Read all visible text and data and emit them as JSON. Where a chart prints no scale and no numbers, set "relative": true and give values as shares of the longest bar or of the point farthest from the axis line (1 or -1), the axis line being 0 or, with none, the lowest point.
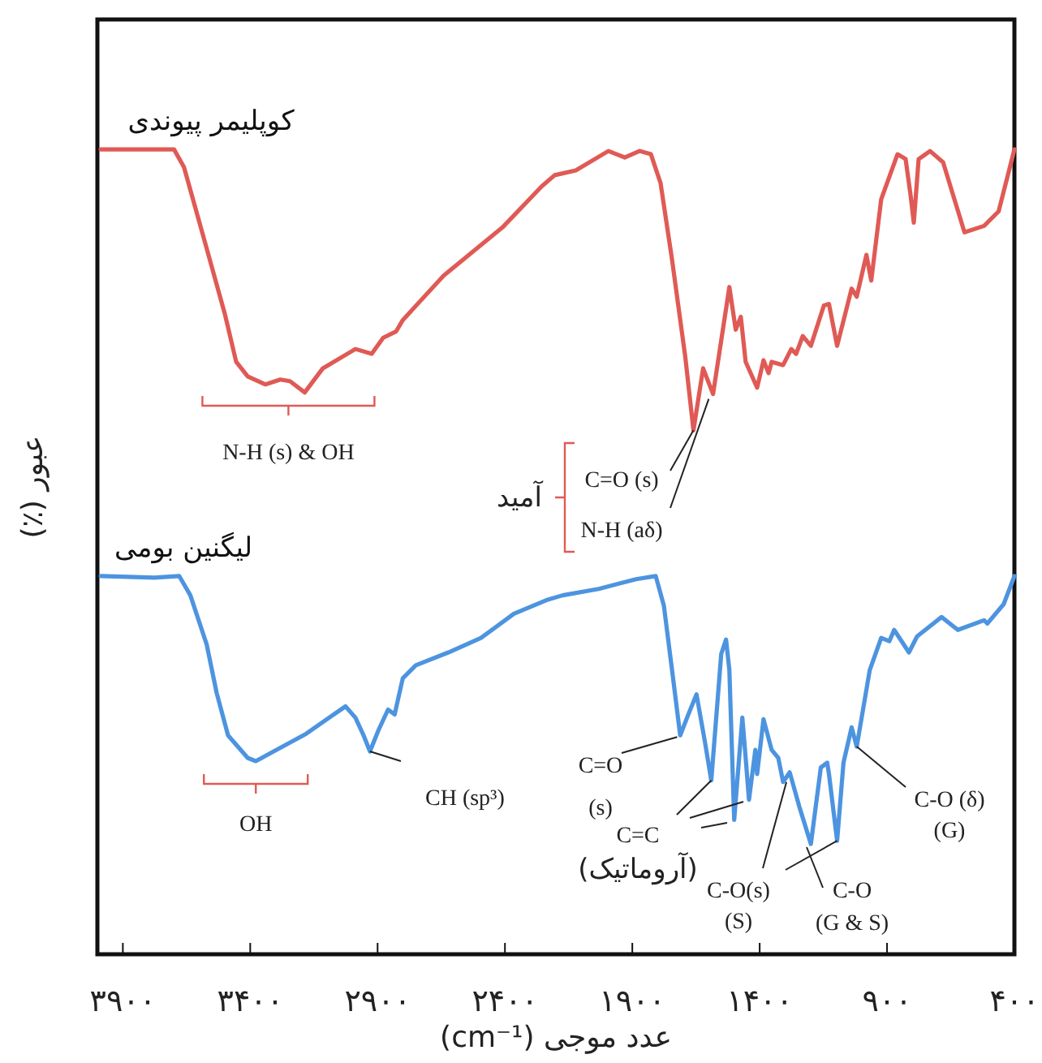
{
  "chart_data": {
    "type": "line",
    "relative": true,
    "xlabel": "عدد موجی (cm⁻¹)",
    "ylabel": "عبور (٪)",
    "xlim": [
      4000,
      400
    ],
    "xticks": [
      {
        "value": 3900,
        "label": "۳۹۰۰"
      },
      {
        "value": 3400,
        "label": "۳۴۰۰"
      },
      {
        "value": 2900,
        "label": "۲۹۰۰"
      },
      {
        "value": 2400,
        "label": "۲۴۰۰"
      },
      {
        "value": 1900,
        "label": "۱۹۰۰"
      },
      {
        "value": 1400,
        "label": "۱۴۰۰"
      },
      {
        "value": 900,
        "label": "۹۰۰"
      },
      {
        "value": 400,
        "label": "۴۰۰"
      }
    ],
    "legend": false,
    "grid": false,
    "marker": "none",
    "line_style": "solid",
    "series": [
      {
        "name": "کوپلیمر پیوندی",
        "color": "#e05a55",
        "x": [
          3987,
          3699,
          3660,
          3571,
          3500,
          3455,
          3410,
          3340,
          3282,
          3244,
          3186,
          3115,
          2987,
          2923,
          2878,
          2827,
          2801,
          2641,
          2410,
          2256,
          2205,
          2122,
          1994,
          1930,
          1872,
          1827,
          1789,
          1744,
          1692,
          1660,
          1622,
          1583,
          1519,
          1494,
          1474,
          1455,
          1410,
          1385,
          1365,
          1353,
          1308,
          1276,
          1257,
          1231,
          1199,
          1148,
          1128,
          1096,
          1039,
          1019,
          981,
          962,
          923,
          859,
          827,
          808,
          795,
          776,
          731,
          680,
          596,
          519,
          462,
          400
        ],
        "values": [
          1.0,
          1.0,
          0.978,
          0.877,
          0.796,
          0.736,
          0.718,
          0.708,
          0.714,
          0.712,
          0.698,
          0.728,
          0.752,
          0.746,
          0.766,
          0.774,
          0.788,
          0.843,
          0.903,
          0.954,
          0.968,
          0.974,
          0.998,
          0.99,
          0.998,
          0.994,
          0.958,
          0.863,
          0.742,
          0.651,
          0.728,
          0.696,
          0.829,
          0.776,
          0.792,
          0.736,
          0.704,
          0.738,
          0.722,
          0.736,
          0.732,
          0.752,
          0.746,
          0.768,
          0.756,
          0.806,
          0.808,
          0.756,
          0.827,
          0.817,
          0.869,
          0.837,
          0.938,
          0.994,
          0.988,
          0.944,
          0.909,
          0.988,
          0.998,
          0.984,
          0.897,
          0.905,
          0.923,
          1.0
        ]
      },
      {
        "name": "لیگنین بومی",
        "color": "#4d94e0",
        "x": [
          3987,
          3776,
          3679,
          3635,
          3571,
          3532,
          3487,
          3410,
          3378,
          3308,
          3180,
          3090,
          3026,
          2987,
          2955,
          2930,
          2897,
          2859,
          2833,
          2801,
          2750,
          2622,
          2494,
          2365,
          2237,
          2173,
          2032,
          1885,
          1808,
          1776,
          1744,
          1712,
          1680,
          1648,
          1615,
          1590,
          1551,
          1532,
          1519,
          1500,
          1468,
          1455,
          1442,
          1417,
          1410,
          1385,
          1353,
          1327,
          1308,
          1282,
          1244,
          1199,
          1160,
          1135,
          1128,
          1096,
          1071,
          1039,
          1019,
          968,
          923,
          891,
          872,
          814,
          782,
          686,
          622,
          519,
          506,
          442,
          400
        ],
        "values": [
          0.47,
          0.468,
          0.47,
          0.446,
          0.385,
          0.325,
          0.272,
          0.244,
          0.24,
          0.252,
          0.274,
          0.294,
          0.308,
          0.294,
          0.272,
          0.252,
          0.278,
          0.304,
          0.298,
          0.343,
          0.359,
          0.375,
          0.393,
          0.423,
          0.44,
          0.446,
          0.454,
          0.466,
          0.47,
          0.433,
          0.353,
          0.272,
          0.298,
          0.323,
          0.264,
          0.216,
          0.373,
          0.391,
          0.353,
          0.167,
          0.294,
          0.244,
          0.192,
          0.254,
          0.224,
          0.292,
          0.254,
          0.244,
          0.214,
          0.226,
          0.183,
          0.137,
          0.232,
          0.238,
          0.224,
          0.141,
          0.238,
          0.282,
          0.258,
          0.353,
          0.393,
          0.389,
          0.403,
          0.375,
          0.395,
          0.419,
          0.403,
          0.415,
          0.411,
          0.435,
          0.47
        ]
      }
    ],
    "annotations": [
      {
        "text": "N-H (s) & OH",
        "x": 3250,
        "y": 0.71
      },
      {
        "text": "C=O (s)",
        "x": 1660,
        "y": 0.651
      },
      {
        "text": "N-H (aδ)",
        "x": 1600,
        "y": 0.69
      },
      "آمید",
      {
        "text": "OH",
        "x": 3378,
        "y": 0.24
      },
      {
        "text": "CH (sp³)",
        "x": 2930,
        "y": 0.252
      },
      {
        "text": "C=O\n(s)",
        "x": 1724,
        "y": 0.27
      },
      {
        "text": "C=C\n(آروماتیک)",
        "x": 1590,
        "y": 0.216
      },
      {
        "text": "C-O(s)\n(S)",
        "x": 1295,
        "y": 0.214
      },
      {
        "text": "C-O\n(G & S)",
        "x": 1096,
        "y": 0.141
      },
      {
        "text": "C-O (δ)\n(G)",
        "x": 1019,
        "y": 0.258
      }
    ]
  }
}
